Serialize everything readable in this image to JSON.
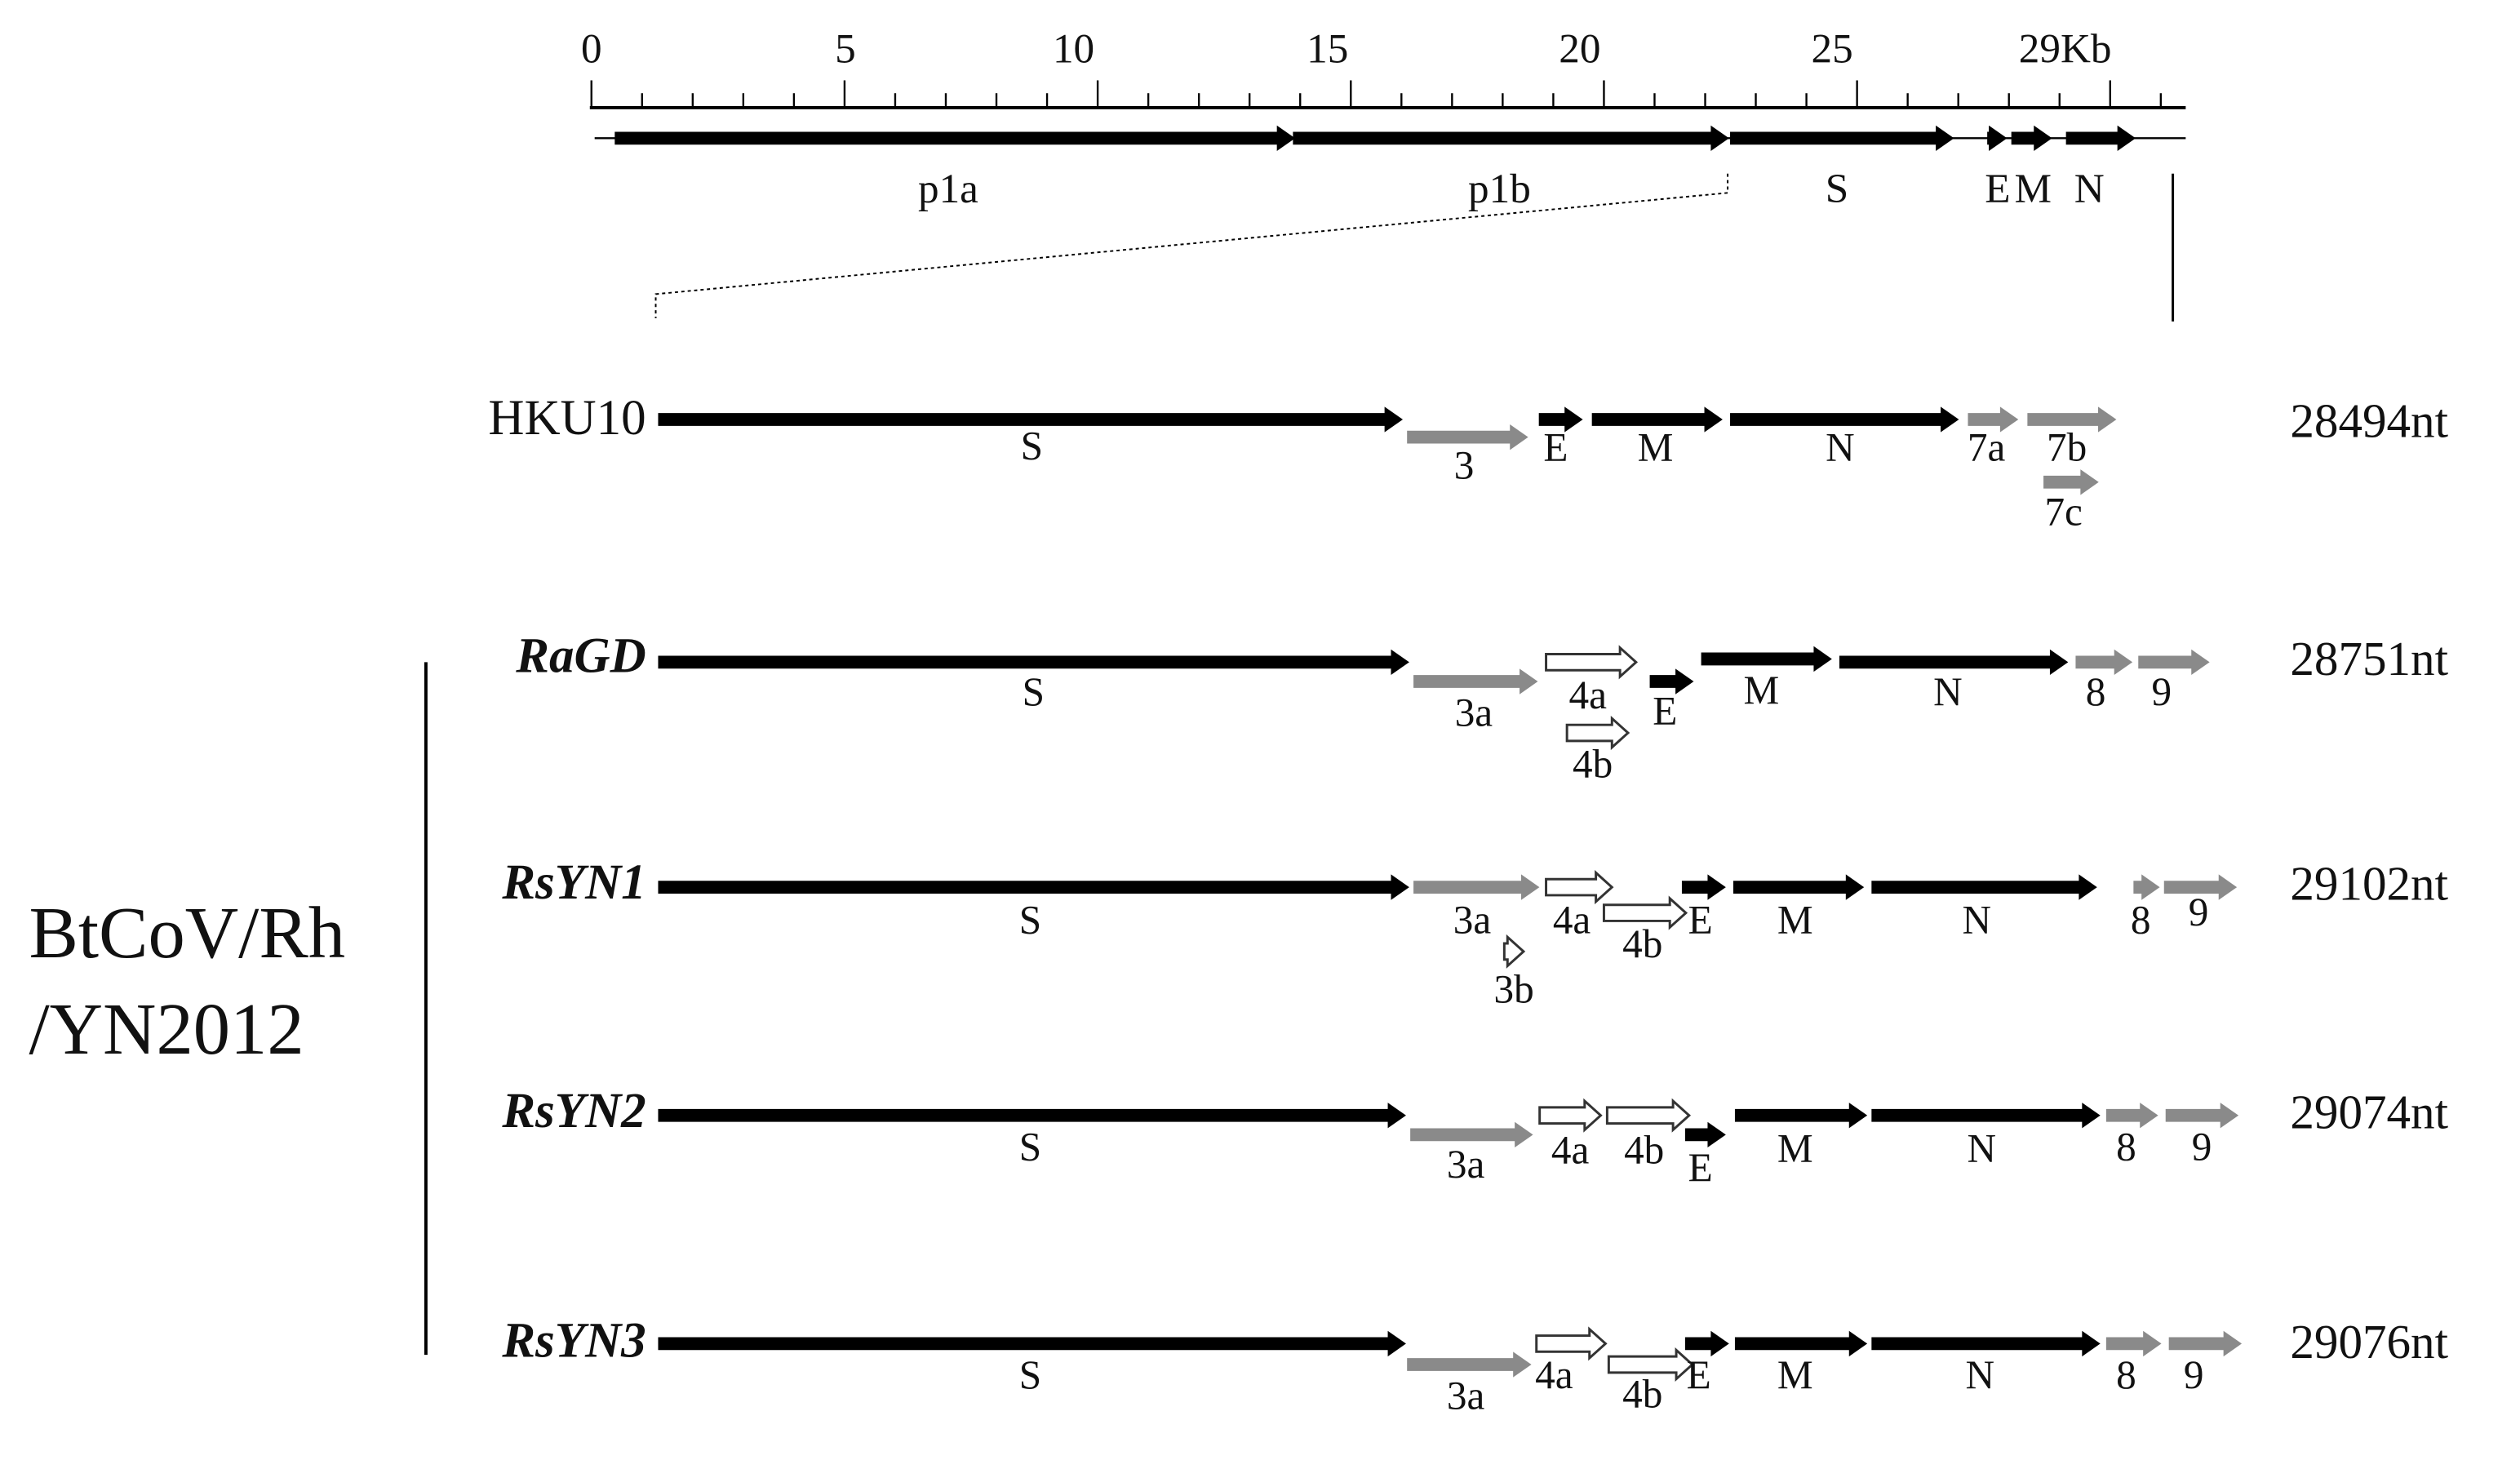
{
  "scale": {
    "ticks": [
      "0",
      "5",
      "10",
      "15",
      "20",
      "25",
      "29Kb"
    ]
  },
  "genome": {
    "genes": [
      "p1a",
      "p1b",
      "S",
      "E",
      "M",
      "N"
    ]
  },
  "group_label": [
    "BtCoV/Rh",
    "/YN2012"
  ],
  "strains": [
    {
      "name": "HKU10",
      "length": "28494nt",
      "genes": [
        "S",
        "3",
        "E",
        "M",
        "N",
        "7a",
        "7b",
        "7c"
      ]
    },
    {
      "name": "RaGD",
      "length": "28751nt",
      "genes": [
        "S",
        "3a",
        "4a",
        "4b",
        "E",
        "M",
        "N",
        "8",
        "9"
      ]
    },
    {
      "name": "RsYN1",
      "length": "29102nt",
      "genes": [
        "S",
        "3a",
        "3b",
        "4a",
        "4b",
        "E",
        "M",
        "N",
        "8",
        "9"
      ]
    },
    {
      "name": "RsYN2",
      "length": "29074nt",
      "genes": [
        "S",
        "3a",
        "4a",
        "4b",
        "E",
        "M",
        "N",
        "8",
        "9"
      ]
    },
    {
      "name": "RsYN3",
      "length": "29076nt",
      "genes": [
        "S",
        "3a",
        "4a",
        "4b",
        "E",
        "M",
        "N",
        "8",
        "9"
      ]
    }
  ]
}
